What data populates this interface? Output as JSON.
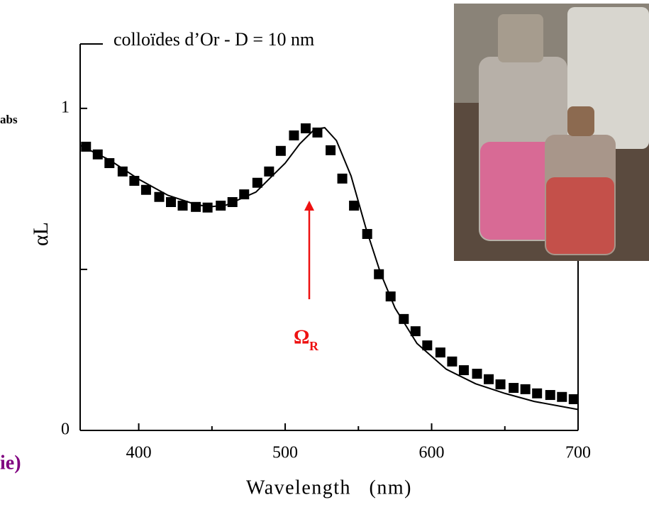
{
  "chart_data": {
    "type": "scatter",
    "title": "colloïdes d’Or - D = 10 nm",
    "xlabel": "Wavelength   (nm)",
    "ylabel": "αL",
    "side_label": "abs",
    "corner_label": "ie)",
    "annotation": {
      "text": "Ω",
      "sub": "R",
      "color": "#ee1111"
    },
    "xlim": [
      360,
      700
    ],
    "ylim": [
      0,
      1.2
    ],
    "xticks": [
      400,
      500,
      600,
      700
    ],
    "xminor_ticks": [
      450,
      550,
      650
    ],
    "yticks": [
      0,
      1
    ],
    "yminor_ticks": [
      0.5
    ],
    "series": [
      {
        "style": "markers",
        "color": "#000000",
        "x": [
          364,
          372,
          380,
          389,
          397,
          405,
          414,
          422,
          430,
          439,
          447,
          456,
          464,
          472,
          481,
          489,
          497,
          506,
          514,
          522,
          531,
          539,
          547,
          556,
          564,
          572,
          581,
          589,
          597,
          606,
          614,
          622,
          631,
          639,
          647,
          656,
          664,
          672,
          681,
          689,
          697
        ],
        "values": [
          0.881,
          0.857,
          0.83,
          0.804,
          0.775,
          0.747,
          0.725,
          0.709,
          0.698,
          0.694,
          0.692,
          0.698,
          0.709,
          0.733,
          0.769,
          0.804,
          0.868,
          0.916,
          0.938,
          0.925,
          0.87,
          0.782,
          0.698,
          0.61,
          0.485,
          0.416,
          0.346,
          0.308,
          0.264,
          0.242,
          0.214,
          0.187,
          0.176,
          0.159,
          0.143,
          0.132,
          0.128,
          0.115,
          0.11,
          0.104,
          0.097
        ]
      },
      {
        "style": "line",
        "color": "#000000",
        "x": [
          360,
          380,
          400,
          420,
          440,
          450,
          460,
          480,
          500,
          510,
          520,
          527,
          535,
          545,
          555,
          565,
          575,
          590,
          610,
          630,
          650,
          670,
          700
        ],
        "values": [
          0.885,
          0.84,
          0.78,
          0.73,
          0.7,
          0.695,
          0.7,
          0.74,
          0.83,
          0.89,
          0.935,
          0.94,
          0.9,
          0.79,
          0.63,
          0.49,
          0.38,
          0.27,
          0.19,
          0.145,
          0.115,
          0.09,
          0.065
        ]
      }
    ]
  }
}
